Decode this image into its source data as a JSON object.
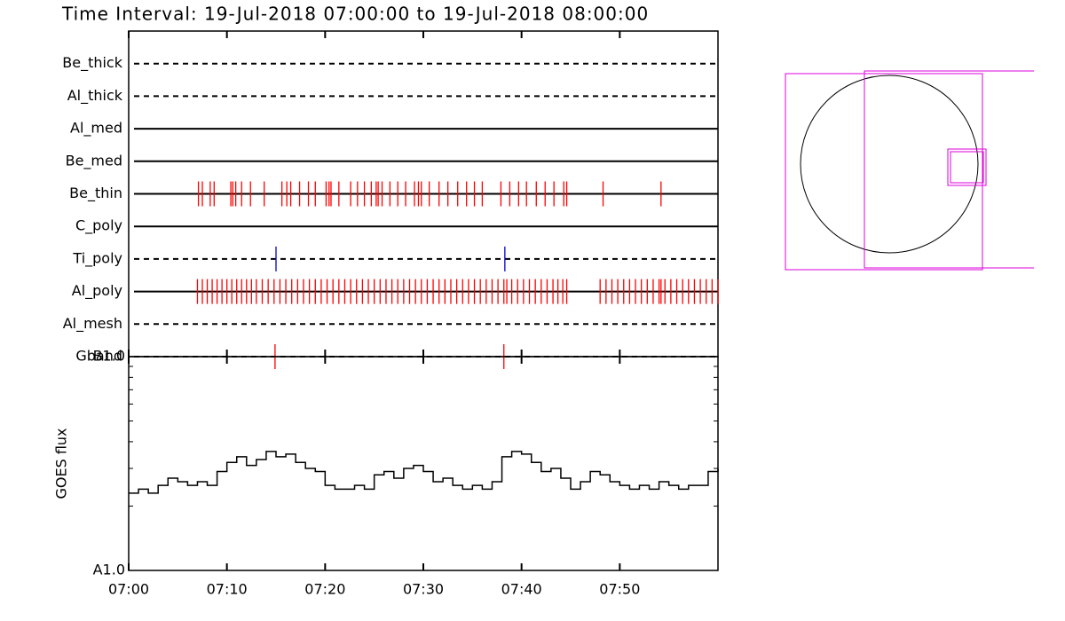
{
  "chart_data": [
    {
      "type": "event",
      "title": "Time Interval: 19-Jul-2018 07:00:00 to 19-Jul-2018 08:00:00",
      "rows": [
        {
          "name": "Be_thick",
          "style": "dashed",
          "color": "#ff0000",
          "events": []
        },
        {
          "name": "Al_thick",
          "style": "dashed",
          "color": "#ff0000",
          "events": []
        },
        {
          "name": "Al_med",
          "style": "solid",
          "color": "#ff0000",
          "events": []
        },
        {
          "name": "Be_med",
          "style": "solid",
          "color": "#ff0000",
          "events": []
        },
        {
          "name": "Be_thin",
          "style": "solid",
          "color": "#ff0000",
          "events": [
            7.1,
            7.5,
            8.3,
            8.7,
            10.4,
            10.6,
            10.9,
            11.5,
            12.4,
            13.8,
            15.6,
            16.1,
            16.5,
            17.4,
            18.3,
            19.0,
            20.1,
            20.4,
            20.6,
            21.4,
            22.6,
            23.3,
            24.0,
            24.7,
            25.2,
            25.4,
            25.8,
            26.6,
            27.4,
            28.2,
            29.1,
            29.5,
            29.8,
            30.6,
            31.6,
            32.5,
            33.5,
            34.4,
            35.2,
            36.0,
            37.9,
            38.8,
            39.7,
            40.5,
            41.5,
            42.4,
            43.3,
            44.3,
            44.6,
            48.3,
            54.2
          ]
        },
        {
          "name": "C_poly",
          "style": "solid",
          "color": "#ff0000",
          "events": []
        },
        {
          "name": "Ti_poly",
          "style": "dashed",
          "color": "#0000cc",
          "events": [
            15.0,
            38.3
          ]
        },
        {
          "name": "Al_poly",
          "style": "solid",
          "color": "#ff0000",
          "events": [
            7.0,
            7.5,
            8.0,
            8.5,
            9.0,
            9.5,
            10.0,
            10.5,
            11.0,
            11.5,
            12.0,
            12.5,
            13.0,
            13.6,
            14.2,
            14.8,
            15.4,
            16.0,
            16.6,
            17.2,
            17.8,
            18.4,
            19.0,
            19.6,
            20.2,
            20.8,
            21.4,
            22.0,
            22.6,
            23.2,
            23.8,
            24.4,
            25.0,
            25.6,
            26.2,
            26.8,
            27.4,
            28.0,
            28.6,
            29.2,
            29.8,
            30.4,
            31.0,
            31.6,
            32.2,
            32.8,
            33.4,
            34.0,
            34.6,
            35.2,
            35.8,
            36.4,
            37.0,
            37.6,
            38.2,
            38.5,
            39.0,
            39.6,
            40.2,
            40.8,
            41.4,
            42.0,
            42.6,
            43.2,
            43.7,
            44.2,
            44.6,
            48.0,
            48.6,
            49.2,
            49.8,
            50.4,
            51.0,
            51.6,
            52.2,
            52.8,
            53.4,
            54.0,
            54.2,
            54.6,
            55.2,
            55.8,
            56.4,
            57.0,
            57.6,
            58.2,
            58.8,
            59.4,
            60.0
          ]
        },
        {
          "name": "Al_mesh",
          "style": "dashed",
          "color": "#ff0000",
          "events": []
        },
        {
          "name": "Gband",
          "style": "dashed",
          "color": "#ff0000",
          "events": [
            14.9,
            38.2
          ]
        }
      ]
    },
    {
      "type": "line",
      "y_label": "GOES flux",
      "color": "#000000",
      "log_y": true,
      "xlim": [
        0,
        60
      ],
      "xticks": [
        {
          "value": 0,
          "label": "07:00"
        },
        {
          "value": 10,
          "label": "07:10"
        },
        {
          "value": 20,
          "label": "07:20"
        },
        {
          "value": 30,
          "label": "07:30"
        },
        {
          "value": 40,
          "label": "07:40"
        },
        {
          "value": 50,
          "label": "07:50"
        }
      ],
      "ylim": [
        1e-08,
        1e-07
      ],
      "yticks": [
        {
          "value": 1e-07,
          "label": "B1.0"
        },
        {
          "value": 1e-08,
          "label": "A1.0"
        }
      ],
      "x": [
        0,
        1,
        2,
        3,
        4,
        5,
        6,
        7,
        8,
        9,
        10,
        11,
        12,
        13,
        14,
        15,
        16,
        17,
        18,
        19,
        20,
        21,
        22,
        23,
        24,
        25,
        26,
        27,
        28,
        29,
        30,
        31,
        32,
        33,
        34,
        35,
        36,
        37,
        38,
        39,
        40,
        41,
        42,
        43,
        44,
        45,
        46,
        47,
        48,
        49,
        50,
        51,
        52,
        53,
        54,
        55,
        56,
        57,
        58,
        59,
        60
      ],
      "values": [
        2.3e-08,
        2.4e-08,
        2.3e-08,
        2.5e-08,
        2.7e-08,
        2.6e-08,
        2.5e-08,
        2.6e-08,
        2.5e-08,
        2.9e-08,
        3.2e-08,
        3.4e-08,
        3.1e-08,
        3.3e-08,
        3.6e-08,
        3.4e-08,
        3.5e-08,
        3.2e-08,
        3e-08,
        2.9e-08,
        2.5e-08,
        2.4e-08,
        2.4e-08,
        2.5e-08,
        2.4e-08,
        2.8e-08,
        2.9e-08,
        2.7e-08,
        3e-08,
        3.1e-08,
        2.9e-08,
        2.6e-08,
        2.7e-08,
        2.5e-08,
        2.4e-08,
        2.5e-08,
        2.4e-08,
        2.6e-08,
        3.4e-08,
        3.6e-08,
        3.5e-08,
        3.2e-08,
        2.9e-08,
        3e-08,
        2.7e-08,
        2.4e-08,
        2.6e-08,
        2.9e-08,
        2.8e-08,
        2.6e-08,
        2.5e-08,
        2.4e-08,
        2.5e-08,
        2.4e-08,
        2.6e-08,
        2.5e-08,
        2.4e-08,
        2.5e-08,
        2.5e-08,
        2.9e-08,
        3e-08
      ]
    }
  ]
}
